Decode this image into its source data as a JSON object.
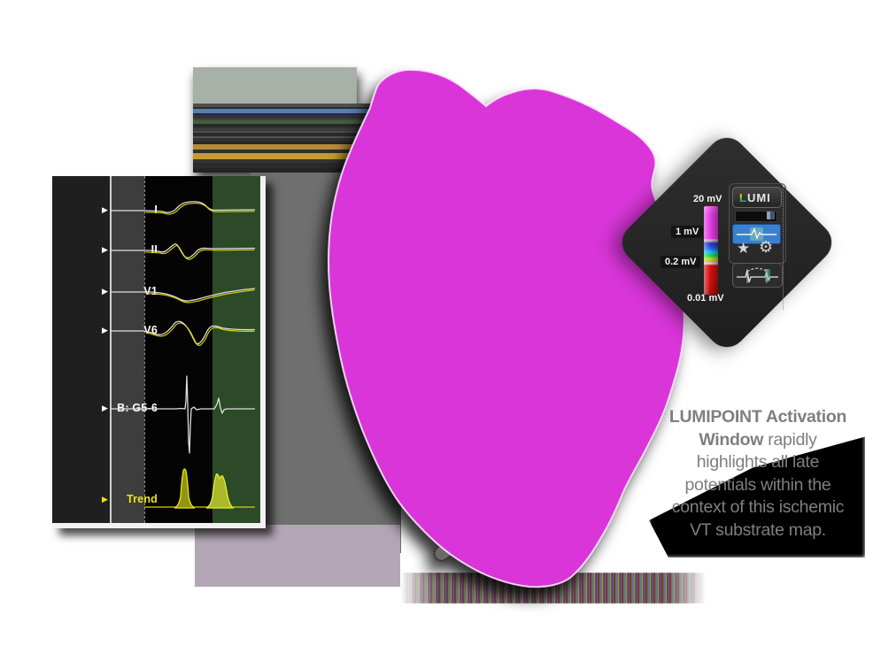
{
  "ecg_panel": {
    "arrow": "▶",
    "leads": [
      {
        "label": "I"
      },
      {
        "label": "II"
      },
      {
        "label": "V1"
      },
      {
        "label": "V6"
      },
      {
        "label": "B: G5-6"
      },
      {
        "label": "Trend"
      }
    ]
  },
  "scale": {
    "top": "20 mV",
    "upper_mid": "1 mV",
    "lower_mid": "0.2 mV",
    "bottom": "0.01 mV"
  },
  "panel": {
    "lumi_l": "L",
    "lumi_rest": "UMI",
    "star_icon": "★",
    "gear_icon": "⚙"
  },
  "caption": {
    "lines": [
      {
        "bold": "LUMIPOINT Activation",
        "regular": ""
      },
      {
        "bold": "Window",
        "regular": " rapidly"
      },
      {
        "bold": "",
        "regular": "highlights all late"
      },
      {
        "bold": "",
        "regular": "potentials within the"
      },
      {
        "bold": "",
        "regular": "context of this ischemic"
      },
      {
        "bold": "",
        "regular": "VT substrate map."
      }
    ]
  },
  "colors": {
    "magenta": "#d935d9",
    "bright_magenta": "#ef46ef",
    "purple_dark": "#7a1f92",
    "purple_mid": "#9b2fae",
    "red": "#d61414",
    "yellow": "#ffe01a",
    "green": "#22b845",
    "cyan": "#19d2e8",
    "blue": "#2140d2",
    "navy": "#18208f",
    "orange": "#f08c10",
    "accent_blue": "#3b80cf",
    "sage": "#a7b1a7",
    "gray": "#6f6f6f",
    "lavender": "#b3a6b5",
    "ecg_green": "#2c4a28",
    "trend_yellow": "#f2e400",
    "caption_gray": "#7f7f7f"
  },
  "dot_colors": [
    "#ff4dff",
    "#ff4dff",
    "#e733e7",
    "#c24dff",
    "#ff3333",
    "#ff8c1a",
    "#ffe11a",
    "#2ecc40",
    "#1ad1d1",
    "#2e5bff",
    "#8833ff"
  ],
  "cross_colors": [
    "#4d1070",
    "#2a1a8a",
    "#6a0f4f",
    "#103a8a",
    "#5a2090"
  ]
}
